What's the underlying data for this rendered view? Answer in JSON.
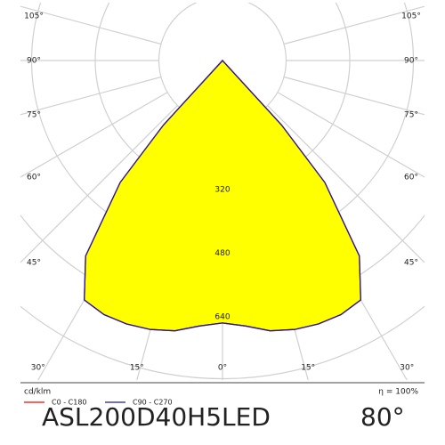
{
  "chart_data": {
    "type": "polar",
    "r_unit": "cd/klm",
    "efficiency": "η = 100%",
    "title": "ASL200D40H5LED",
    "subtitle": "80°",
    "angles": [
      -45,
      -42.5,
      -40,
      -35,
      -30,
      -25,
      -20,
      -15,
      -10,
      -5,
      0,
      5,
      10,
      15,
      20,
      25,
      30,
      35,
      40,
      42.5,
      45
    ],
    "series": [
      {
        "name": "C0 - C180",
        "color": "#ff0000",
        "values": [
          0,
          220,
          400,
          600,
          695,
          705,
          705,
          700,
          690,
          670,
          660,
          670,
          690,
          700,
          705,
          705,
          695,
          600,
          400,
          220,
          0
        ]
      },
      {
        "name": "C90 - C270",
        "color": "#1a1aa6",
        "values": [
          0,
          220,
          400,
          600,
          695,
          705,
          705,
          700,
          690,
          670,
          660,
          670,
          690,
          700,
          705,
          705,
          695,
          600,
          400,
          220,
          0
        ]
      }
    ],
    "fill_color": "#ffff00",
    "rlim": [
      0,
      800
    ],
    "grid_rings": [
      160,
      320,
      480,
      640,
      800
    ],
    "rticks": [
      320,
      480,
      640
    ],
    "angle_ticks": [
      {
        "value": -105,
        "label": "105°"
      },
      {
        "value": -90,
        "label": "90°"
      },
      {
        "value": -75,
        "label": "75°"
      },
      {
        "value": -60,
        "label": "60°"
      },
      {
        "value": -45,
        "label": "45°"
      },
      {
        "value": -30,
        "label": "30°"
      },
      {
        "value": -15,
        "label": "15°"
      },
      {
        "value": 0,
        "label": "0°"
      },
      {
        "value": 15,
        "label": "15°"
      },
      {
        "value": 30,
        "label": "30°"
      },
      {
        "value": 45,
        "label": "45°"
      },
      {
        "value": 60,
        "label": "60°"
      },
      {
        "value": 75,
        "label": "75°"
      },
      {
        "value": 90,
        "label": "90°"
      },
      {
        "value": 105,
        "label": "105°"
      }
    ]
  }
}
